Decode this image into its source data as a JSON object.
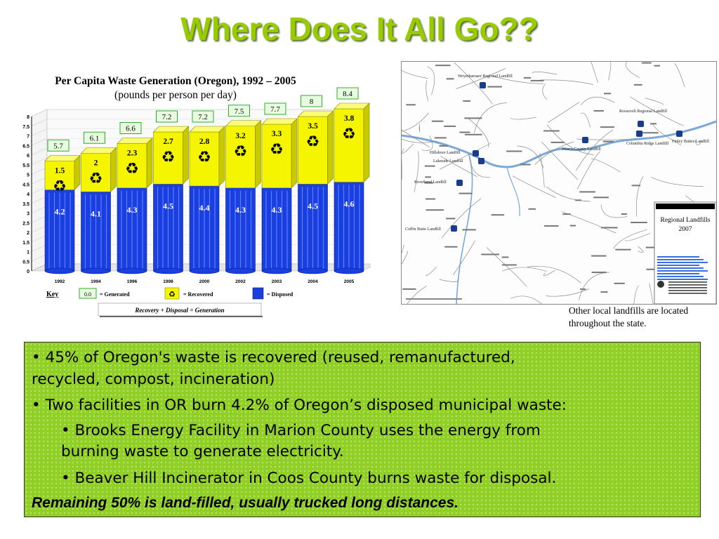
{
  "slide": {
    "title": "Where Does It All Go??"
  },
  "chart_data": {
    "type": "bar",
    "title": "Per Capita Waste Generation (Oregon), 1992 – 2005",
    "subtitle": "(pounds per person per day)",
    "categories": [
      "1992",
      "1994",
      "1996",
      "1998",
      "2000",
      "2002",
      "2003",
      "2004",
      "2005"
    ],
    "series": [
      {
        "name": "= Disposed",
        "values": [
          4.2,
          4.1,
          4.3,
          4.5,
          4.4,
          4.3,
          4.3,
          4.5,
          4.6
        ],
        "color": "#1a3fe0"
      },
      {
        "name": "= Recovered",
        "values": [
          1.5,
          2.0,
          2.3,
          2.7,
          2.8,
          3.2,
          3.3,
          3.5,
          3.8
        ],
        "color": "#f5f500"
      }
    ],
    "totals": [
      5.7,
      6.1,
      6.6,
      7.2,
      7.2,
      7.5,
      7.7,
      8.0,
      8.4
    ],
    "yticks": [
      "0",
      "0.5",
      "1",
      "1.5",
      "2",
      "2.5",
      "3",
      "3.5",
      "4",
      "4.5",
      "5",
      "5.5",
      "6",
      "6.5",
      "7",
      "7.5",
      "8"
    ],
    "ylim": [
      0,
      8
    ],
    "grid": true,
    "legend": {
      "key_label": "Key",
      "generated_sample": "0.0",
      "generated_label": "= Generated",
      "recovered_label": "= Recovered",
      "disposed_label": "= Disposed",
      "equation_part1": "Recovery",
      "equation_plus": "+",
      "equation_part2": "Disposal",
      "equation_equals": "=",
      "equation_part3": "Generation"
    }
  },
  "map": {
    "title_line1": "Regional Landfills",
    "title_line2": "2007",
    "labels": [
      "Weyerhaeuser Regional Landfill",
      "Roosevelt Regional Landfill",
      "Columbia Ridge Landfill",
      "Finley Buttes Landfill",
      "Wasco County Landfill",
      "Hillsboro Landfill",
      "Lakeside Landfill",
      "Riverbend Landfill",
      "Coffin Butte Landfill"
    ],
    "landfill_color": "#1a3c8c"
  },
  "map_caption": "Other local landfills are located throughout the state.",
  "facts": {
    "f1": "• 45% of Oregon's waste is recovered (reused, remanufactured,",
    "f1b": "recycled, compost, incineration)",
    "f2": "• Two facilities in OR burn 4.2% of Oregon’s disposed municipal waste:",
    "f3": "• Brooks Energy Facility in Marion County uses the energy from",
    "f3b": "burning waste to generate electricity.",
    "f4": "• Beaver Hill Incinerator in Coos County burns waste for disposal.",
    "f5": "Remaining 50% is land-filled, usually trucked long distances."
  },
  "colors": {
    "title": "#99cc00",
    "box": "#8fcf26",
    "disposed": "#1a3fe0",
    "recovered": "#f5f500",
    "total_label_bg": "#e8fde0",
    "total_label_border": "#33aa33"
  }
}
